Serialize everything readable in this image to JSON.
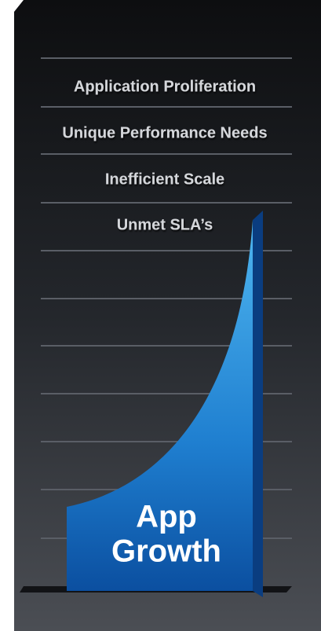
{
  "labels": [
    "Application Proliferation",
    "Unique Performance Needs",
    "Inefficient Scale",
    "Unmet SLA’s"
  ],
  "shape": {
    "label_lines": [
      "App",
      "Growth"
    ]
  }
}
